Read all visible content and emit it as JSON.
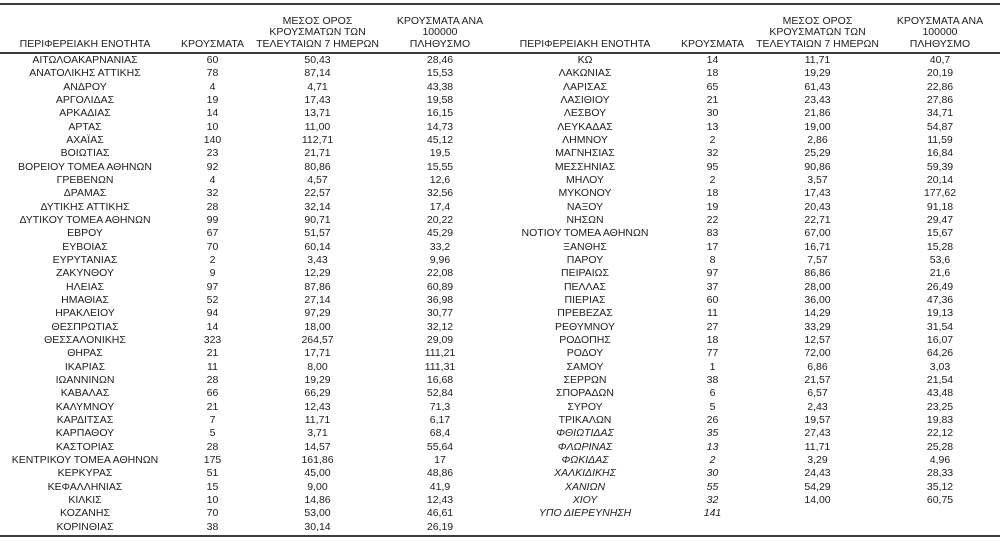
{
  "page": {
    "background": "#ffffff",
    "text_color": "#1d1d1d",
    "rule_color": "#3d3d3d"
  },
  "table": {
    "column_headers": {
      "region": "ΠΕΡΙΦΕΡΕΙΑΚΗ ΕΝΟΤΗΤΑ",
      "cases": "ΚΡΟΥΣΜΑΤΑ",
      "avg7": "ΜΕΣΟΣ ΟΡΟΣ\nΚΡΟΥΣΜΑΤΩΝ ΤΩΝ\nΤΕΛΕΥΤΑΙΩΝ 7 ΗΜΕΡΩΝ",
      "per100k": "ΚΡΟΥΣΜΑΤΑ ΑΝΑ 100000\nΠΛΗΘΥΣΜΟ"
    },
    "left_rows": [
      {
        "name": "ΑΙΤΩΛΟΑΚΑΡΝΑΝΙΑΣ",
        "cases": "60",
        "avg7": "50,43",
        "per100k": "28,46"
      },
      {
        "name": "ΑΝΑΤΟΛΙΚΗΣ ΑΤΤΙΚΗΣ",
        "cases": "78",
        "avg7": "87,14",
        "per100k": "15,53"
      },
      {
        "name": "ΑΝΔΡΟΥ",
        "cases": "4",
        "avg7": "4,71",
        "per100k": "43,38"
      },
      {
        "name": "ΑΡΓΟΛΙΔΑΣ",
        "cases": "19",
        "avg7": "17,43",
        "per100k": "19,58"
      },
      {
        "name": "ΑΡΚΑΔΙΑΣ",
        "cases": "14",
        "avg7": "13,71",
        "per100k": "16,15"
      },
      {
        "name": "ΑΡΤΑΣ",
        "cases": "10",
        "avg7": "11,00",
        "per100k": "14,73"
      },
      {
        "name": "ΑΧΑΪΑΣ",
        "cases": "140",
        "avg7": "112,71",
        "per100k": "45,12"
      },
      {
        "name": "ΒΟΙΩΤΙΑΣ",
        "cases": "23",
        "avg7": "21,71",
        "per100k": "19,5"
      },
      {
        "name": "ΒΟΡΕΙΟΥ ΤΟΜΕΑ ΑΘΗΝΩΝ",
        "cases": "92",
        "avg7": "80,86",
        "per100k": "15,55"
      },
      {
        "name": "ΓΡΕΒΕΝΩΝ",
        "cases": "4",
        "avg7": "4,57",
        "per100k": "12,6"
      },
      {
        "name": "ΔΡΑΜΑΣ",
        "cases": "32",
        "avg7": "22,57",
        "per100k": "32,56"
      },
      {
        "name": "ΔΥΤΙΚΗΣ ΑΤΤΙΚΗΣ",
        "cases": "28",
        "avg7": "32,14",
        "per100k": "17,4"
      },
      {
        "name": "ΔΥΤΙΚΟΥ ΤΟΜΕΑ ΑΘΗΝΩΝ",
        "cases": "99",
        "avg7": "90,71",
        "per100k": "20,22"
      },
      {
        "name": "ΕΒΡΟΥ",
        "cases": "67",
        "avg7": "51,57",
        "per100k": "45,29"
      },
      {
        "name": "ΕΥΒΟΙΑΣ",
        "cases": "70",
        "avg7": "60,14",
        "per100k": "33,2"
      },
      {
        "name": "ΕΥΡΥΤΑΝΙΑΣ",
        "cases": "2",
        "avg7": "3,43",
        "per100k": "9,96"
      },
      {
        "name": "ΖΑΚΥΝΘΟΥ",
        "cases": "9",
        "avg7": "12,29",
        "per100k": "22,08"
      },
      {
        "name": "ΗΛΕΙΑΣ",
        "cases": "97",
        "avg7": "87,86",
        "per100k": "60,89"
      },
      {
        "name": "ΗΜΑΘΙΑΣ",
        "cases": "52",
        "avg7": "27,14",
        "per100k": "36,98"
      },
      {
        "name": "ΗΡΑΚΛΕΙΟΥ",
        "cases": "94",
        "avg7": "97,29",
        "per100k": "30,77"
      },
      {
        "name": "ΘΕΣΠΡΩΤΙΑΣ",
        "cases": "14",
        "avg7": "18,00",
        "per100k": "32,12"
      },
      {
        "name": "ΘΕΣΣΑΛΟΝΙΚΗΣ",
        "cases": "323",
        "avg7": "264,57",
        "per100k": "29,09"
      },
      {
        "name": "ΘΗΡΑΣ",
        "cases": "21",
        "avg7": "17,71",
        "per100k": "111,21"
      },
      {
        "name": "ΙΚΑΡΙΑΣ",
        "cases": "11",
        "avg7": "8,00",
        "per100k": "111,31"
      },
      {
        "name": "ΙΩΑΝΝΙΝΩΝ",
        "cases": "28",
        "avg7": "19,29",
        "per100k": "16,68"
      },
      {
        "name": "ΚΑΒΑΛΑΣ",
        "cases": "66",
        "avg7": "66,29",
        "per100k": "52,84"
      },
      {
        "name": "ΚΑΛΥΜΝΟΥ",
        "cases": "21",
        "avg7": "12,43",
        "per100k": "71,3"
      },
      {
        "name": "ΚΑΡΔΙΤΣΑΣ",
        "cases": "7",
        "avg7": "11,71",
        "per100k": "6,17"
      },
      {
        "name": "ΚΑΡΠΑΘΟΥ",
        "cases": "5",
        "avg7": "3,71",
        "per100k": "68,4"
      },
      {
        "name": "ΚΑΣΤΟΡΙΑΣ",
        "cases": "28",
        "avg7": "14,57",
        "per100k": "55,64"
      },
      {
        "name": "ΚΕΝΤΡΙΚΟΥ ΤΟΜΕΑ ΑΘΗΝΩΝ",
        "cases": "175",
        "avg7": "161,86",
        "per100k": "17"
      },
      {
        "name": "ΚΕΡΚΥΡΑΣ",
        "cases": "51",
        "avg7": "45,00",
        "per100k": "48,86"
      },
      {
        "name": "ΚΕΦΑΛΛΗΝΙΑΣ",
        "cases": "15",
        "avg7": "9,00",
        "per100k": "41,9"
      },
      {
        "name": "ΚΙΛΚΙΣ",
        "cases": "10",
        "avg7": "14,86",
        "per100k": "12,43"
      },
      {
        "name": "ΚΟΖΑΝΗΣ",
        "cases": "70",
        "avg7": "53,00",
        "per100k": "46,61"
      },
      {
        "name": "ΚΟΡΙΝΘΙΑΣ",
        "cases": "38",
        "avg7": "30,14",
        "per100k": "26,19"
      }
    ],
    "right_rows": [
      {
        "name": "ΚΩ",
        "cases": "14",
        "avg7": "11,71",
        "per100k": "40,7"
      },
      {
        "name": "ΛΑΚΩΝΙΑΣ",
        "cases": "18",
        "avg7": "19,29",
        "per100k": "20,19"
      },
      {
        "name": "ΛΑΡΙΣΑΣ",
        "cases": "65",
        "avg7": "61,43",
        "per100k": "22,86"
      },
      {
        "name": "ΛΑΣΙΘΙΟΥ",
        "cases": "21",
        "avg7": "23,43",
        "per100k": "27,86"
      },
      {
        "name": "ΛΕΣΒΟΥ",
        "cases": "30",
        "avg7": "21,86",
        "per100k": "34,71"
      },
      {
        "name": "ΛΕΥΚΑΔΑΣ",
        "cases": "13",
        "avg7": "19,00",
        "per100k": "54,87"
      },
      {
        "name": "ΛΗΜΝΟΥ",
        "cases": "2",
        "avg7": "2,86",
        "per100k": "11,59"
      },
      {
        "name": "ΜΑΓΝΗΣΙΑΣ",
        "cases": "32",
        "avg7": "25,29",
        "per100k": "16,84"
      },
      {
        "name": "ΜΕΣΣΗΝΙΑΣ",
        "cases": "95",
        "avg7": "90,86",
        "per100k": "59,39"
      },
      {
        "name": "ΜΗΛΟΥ",
        "cases": "2",
        "avg7": "3,57",
        "per100k": "20,14"
      },
      {
        "name": "ΜΥΚΟΝΟΥ",
        "cases": "18",
        "avg7": "17,43",
        "per100k": "177,62"
      },
      {
        "name": "ΝΑΞΟΥ",
        "cases": "19",
        "avg7": "20,43",
        "per100k": "91,18"
      },
      {
        "name": "ΝΗΣΩΝ",
        "cases": "22",
        "avg7": "22,71",
        "per100k": "29,47"
      },
      {
        "name": "ΝΟΤΙΟΥ ΤΟΜΕΑ ΑΘΗΝΩΝ",
        "cases": "83",
        "avg7": "67,00",
        "per100k": "15,67"
      },
      {
        "name": "ΞΑΝΘΗΣ",
        "cases": "17",
        "avg7": "16,71",
        "per100k": "15,28"
      },
      {
        "name": "ΠΑΡΟΥ",
        "cases": "8",
        "avg7": "7,57",
        "per100k": "53,6"
      },
      {
        "name": "ΠΕΙΡΑΙΩΣ",
        "cases": "97",
        "avg7": "86,86",
        "per100k": "21,6"
      },
      {
        "name": "ΠΕΛΛΑΣ",
        "cases": "37",
        "avg7": "28,00",
        "per100k": "26,49"
      },
      {
        "name": "ΠΙΕΡΙΑΣ",
        "cases": "60",
        "avg7": "36,00",
        "per100k": "47,36"
      },
      {
        "name": "ΠΡΕΒΕΖΑΣ",
        "cases": "11",
        "avg7": "14,29",
        "per100k": "19,13"
      },
      {
        "name": "ΡΕΘΥΜΝΟΥ",
        "cases": "27",
        "avg7": "33,29",
        "per100k": "31,54"
      },
      {
        "name": "ΡΟΔΟΠΗΣ",
        "cases": "18",
        "avg7": "12,57",
        "per100k": "16,07"
      },
      {
        "name": "ΡΟΔΟΥ",
        "cases": "77",
        "avg7": "72,00",
        "per100k": "64,26"
      },
      {
        "name": "ΣΑΜΟΥ",
        "cases": "1",
        "avg7": "6,86",
        "per100k": "3,03"
      },
      {
        "name": "ΣΕΡΡΩΝ",
        "cases": "38",
        "avg7": "21,57",
        "per100k": "21,54"
      },
      {
        "name": "ΣΠΟΡΑΔΩΝ",
        "cases": "6",
        "avg7": "6,57",
        "per100k": "43,48"
      },
      {
        "name": "ΣΥΡΟΥ",
        "cases": "5",
        "avg7": "2,43",
        "per100k": "23,25"
      },
      {
        "name": "ΤΡΙΚΑΛΩΝ",
        "cases": "26",
        "avg7": "19,57",
        "per100k": "19,83"
      },
      {
        "name": "ΦΘΙΩΤΙΔΑΣ",
        "cases": "35",
        "avg7": "27,43",
        "per100k": "22,12",
        "italic": true
      },
      {
        "name": "ΦΛΩΡΙΝΑΣ",
        "cases": "13",
        "avg7": "11,71",
        "per100k": "25,28",
        "italic": true
      },
      {
        "name": "ΦΩΚΙΔΑΣ",
        "cases": "2",
        "avg7": "3,29",
        "per100k": "4,96",
        "italic": true
      },
      {
        "name": "ΧΑΛΚΙΔΙΚΗΣ",
        "cases": "30",
        "avg7": "24,43",
        "per100k": "28,33",
        "italic": true
      },
      {
        "name": "ΧΑΝΙΩΝ",
        "cases": "55",
        "avg7": "54,29",
        "per100k": "35,12",
        "italic": true
      },
      {
        "name": "ΧΙΟΥ",
        "cases": "32",
        "avg7": "14,00",
        "per100k": "60,75",
        "italic": true
      },
      {
        "name": "ΥΠΟ ΔΙΕΡΕΥΝΗΣΗ",
        "cases": "141",
        "avg7": "",
        "per100k": "",
        "italic": true
      }
    ]
  }
}
